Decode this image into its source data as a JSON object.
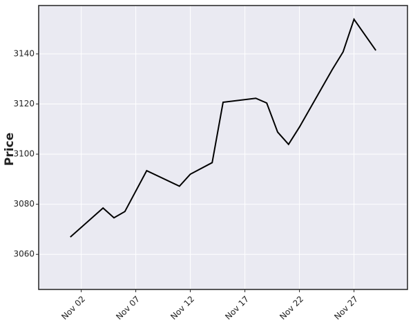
{
  "chart_data": {
    "type": "line",
    "y_label": "Price",
    "x": [
      1,
      4,
      5,
      6,
      8,
      11,
      12,
      14,
      15,
      18,
      19,
      20,
      21,
      22,
      25,
      26,
      27,
      29
    ],
    "series": [
      {
        "color": "#000000",
        "values": [
          3066.9,
          3078.5,
          3074.6,
          3077.1,
          3093.4,
          3087.2,
          3092.0,
          3096.6,
          3120.7,
          3122.3,
          3120.4,
          3108.8,
          3103.9,
          3110.8,
          3133.7,
          3140.8,
          3153.8,
          3141.4
        ]
      }
    ],
    "xlim": [
      -1.9,
      31.9
    ],
    "xticks": [
      {
        "value": 2,
        "label": "Nov 02"
      },
      {
        "value": 7,
        "label": "Nov 07"
      },
      {
        "value": 12,
        "label": "Nov 12"
      },
      {
        "value": 17,
        "label": "Nov 17"
      },
      {
        "value": 22,
        "label": "Nov 22"
      },
      {
        "value": 27,
        "label": "Nov 27"
      }
    ],
    "ylim": [
      3046,
      3159.3
    ],
    "yticks": [
      3060,
      3080,
      3100,
      3120,
      3140
    ],
    "grid": true,
    "background": "#eaeaf2"
  }
}
